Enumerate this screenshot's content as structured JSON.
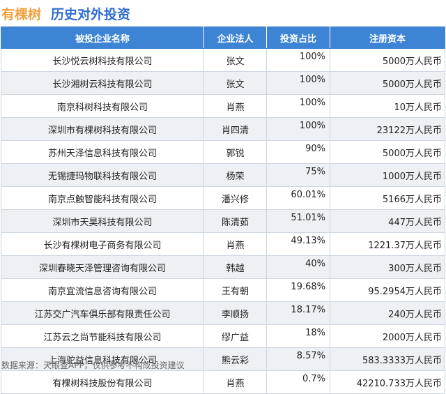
{
  "header": {
    "company": "有棵树",
    "subtitle": "历史对外投资"
  },
  "table": {
    "columns": [
      "被投企业名称",
      "企业法人",
      "投资占比",
      "注册资本"
    ],
    "rows": [
      {
        "name": "长沙悦云树科技有限公司",
        "rep": "张文",
        "ratio": "100%",
        "capital": "5000万人民币"
      },
      {
        "name": "长沙湘树云科技有限公司",
        "rep": "张文",
        "ratio": "100%",
        "capital": "5000万人民币"
      },
      {
        "name": "南京科树科技有限公司",
        "rep": "肖燕",
        "ratio": "100%",
        "capital": "10万人民币"
      },
      {
        "name": "深圳市有棵树科技有限公司",
        "rep": "肖四清",
        "ratio": "100%",
        "capital": "23122万人民币"
      },
      {
        "name": "苏州天泽信息科技有限公司",
        "rep": "郭锐",
        "ratio": "90%",
        "capital": "5000万人民币"
      },
      {
        "name": "无锡捷玛物联科技有限公司",
        "rep": "杨荣",
        "ratio": "75%",
        "capital": "1000万人民币"
      },
      {
        "name": "南京点触智能科技有限公司",
        "rep": "潘兴修",
        "ratio": "60.01%",
        "capital": "5166万人民币"
      },
      {
        "name": "深圳市天昊科技有限公司",
        "rep": "陈清茹",
        "ratio": "51.01%",
        "capital": "447万人民币"
      },
      {
        "name": "长沙有棵树电子商务有限公司",
        "rep": "肖燕",
        "ratio": "49.13%",
        "capital": "1221.37万人民币"
      },
      {
        "name": "深圳春晓天泽管理咨询有限公司",
        "rep": "韩越",
        "ratio": "40%",
        "capital": "300万人民币"
      },
      {
        "name": "南京宜流信息咨询有限公司",
        "rep": "王有朝",
        "ratio": "19.68%",
        "capital": "95.2954万人民币"
      },
      {
        "name": "江苏交广汽车俱乐部有限责任公司",
        "rep": "李顺扬",
        "ratio": "18.17%",
        "capital": "240万人民币"
      },
      {
        "name": "江苏云之尚节能科技有限公司",
        "rep": "缪广益",
        "ratio": "18%",
        "capital": "2000万人民币"
      },
      {
        "name": "上海驼益信息科技有限公司",
        "rep": "熊云彩",
        "ratio": "8.57%",
        "capital": "583.3333万人民币"
      },
      {
        "name": "有棵树科技股份有限公司",
        "rep": "肖燕",
        "ratio": "0.7%",
        "capital": "42210.733万人民币"
      }
    ]
  },
  "footer": {
    "source": "数据来源：天眼查APP，仅供参考不构成投资建议"
  }
}
